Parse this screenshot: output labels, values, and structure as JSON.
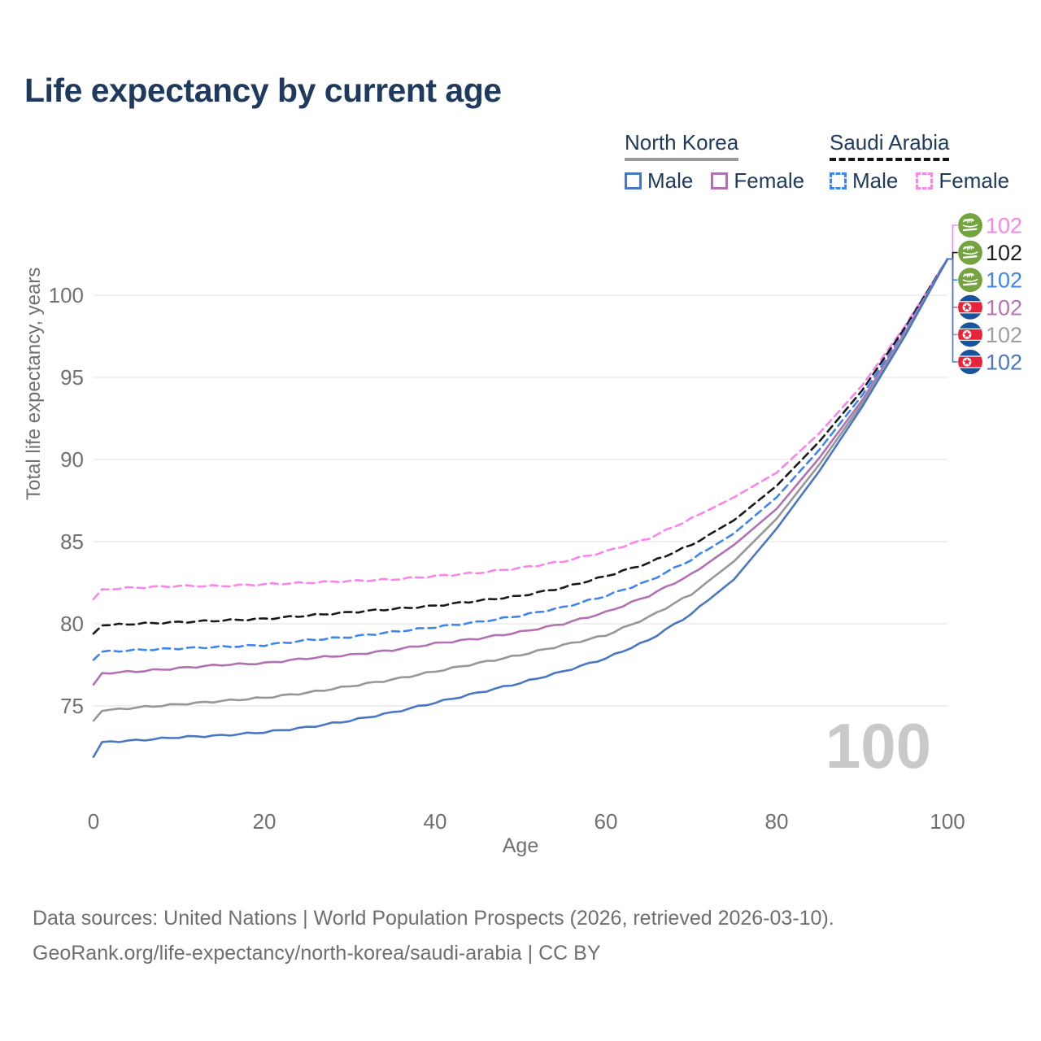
{
  "title": "Life expectancy by current age",
  "legend": {
    "groups": [
      {
        "name": "North Korea",
        "line_style": "solid",
        "underline_color": "#9a9a9a",
        "items": [
          {
            "label": "Male",
            "color": "#4a77c2"
          },
          {
            "label": "Female",
            "color": "#b271b3"
          }
        ]
      },
      {
        "name": "Saudi Arabia",
        "line_style": "dashed",
        "underline_color": "#161616",
        "items": [
          {
            "label": "Male",
            "color": "#3d86f2"
          },
          {
            "label": "Female",
            "color": "#fb84ea"
          }
        ]
      }
    ]
  },
  "chart_data": {
    "type": "line",
    "title": "Life expectancy by current age",
    "xlabel": "Age",
    "ylabel": "Total life expectancy, years",
    "x_ticks": [
      0,
      20,
      40,
      60,
      80,
      100
    ],
    "y_ticks": [
      75,
      80,
      85,
      90,
      95,
      100
    ],
    "xlim": [
      0,
      100
    ],
    "ylim": [
      71,
      103.5
    ],
    "grid": "horizontal-only",
    "legend_position": "top-right",
    "age_counter": "100",
    "x": [
      0,
      1,
      5,
      10,
      15,
      20,
      25,
      30,
      35,
      40,
      45,
      50,
      55,
      60,
      65,
      70,
      75,
      80,
      85,
      90,
      95,
      100
    ],
    "series": [
      {
        "name": "Saudi Arabia Female",
        "country": "Saudi Arabia",
        "sex": "Female",
        "style": "dashed",
        "color": "#fb84ea",
        "flag": "saudi-arabia",
        "end_label": "102",
        "end_label_color": "#fb84ea",
        "values": [
          81.5,
          82.1,
          82.2,
          82.3,
          82.3,
          82.4,
          82.5,
          82.6,
          82.7,
          82.9,
          83.1,
          83.4,
          83.8,
          84.4,
          85.2,
          86.4,
          87.7,
          89.2,
          91.6,
          94.5,
          98.1,
          102.2
        ]
      },
      {
        "name": "Saudi Arabia Both sexes",
        "country": "Saudi Arabia",
        "sex": "Both",
        "style": "dashed",
        "color": "#1a1a1a",
        "flag": "saudi-arabia",
        "end_label": "102",
        "end_label_color": "#1f1f1f",
        "values": [
          79.4,
          79.9,
          80.0,
          80.1,
          80.2,
          80.3,
          80.5,
          80.7,
          80.9,
          81.1,
          81.4,
          81.7,
          82.2,
          82.9,
          83.7,
          84.8,
          86.3,
          88.4,
          91.1,
          94.2,
          98.0,
          102.2
        ]
      },
      {
        "name": "Saudi Arabia Male",
        "country": "Saudi Arabia",
        "sex": "Male",
        "style": "dashed",
        "color": "#3d86f2",
        "flag": "saudi-arabia",
        "end_label": "102",
        "end_label_color": "#3d86f2",
        "values": [
          77.8,
          78.3,
          78.4,
          78.5,
          78.6,
          78.7,
          79.0,
          79.2,
          79.5,
          79.8,
          80.1,
          80.5,
          81.0,
          81.7,
          82.6,
          83.9,
          85.5,
          87.7,
          90.6,
          93.9,
          97.8,
          102.2
        ]
      },
      {
        "name": "North Korea Female",
        "country": "North Korea",
        "sex": "Female",
        "style": "solid",
        "color": "#b271b3",
        "flag": "north-korea",
        "end_label": "102",
        "end_label_color": "#b473b4",
        "values": [
          76.3,
          77.0,
          77.1,
          77.3,
          77.5,
          77.6,
          77.9,
          78.1,
          78.4,
          78.8,
          79.1,
          79.5,
          80.0,
          80.7,
          81.7,
          83.0,
          84.8,
          87.0,
          90.1,
          93.6,
          97.7,
          102.2
        ]
      },
      {
        "name": "North Korea Both sexes",
        "country": "North Korea",
        "sex": "Both",
        "style": "solid",
        "color": "#979797",
        "flag": "north-korea",
        "end_label": "102",
        "end_label_color": "#9e9e9e",
        "values": [
          74.1,
          74.7,
          74.9,
          75.1,
          75.3,
          75.5,
          75.8,
          76.2,
          76.6,
          77.1,
          77.6,
          78.1,
          78.7,
          79.3,
          80.4,
          81.8,
          83.8,
          86.4,
          89.7,
          93.4,
          97.6,
          102.2
        ]
      },
      {
        "name": "North Korea Male",
        "country": "North Korea",
        "sex": "Male",
        "style": "solid",
        "color": "#4a77c2",
        "flag": "north-korea",
        "end_label": "102",
        "end_label_color": "#4a77c2",
        "values": [
          71.9,
          72.8,
          72.9,
          73.1,
          73.2,
          73.4,
          73.7,
          74.1,
          74.6,
          75.2,
          75.8,
          76.4,
          77.1,
          77.9,
          79.0,
          80.6,
          82.7,
          85.8,
          89.3,
          93.2,
          97.5,
          102.2
        ]
      }
    ]
  },
  "colors": {
    "title_text": "#1e3a5f",
    "axis_text": "#707070",
    "gridline": "#ececec",
    "watermark": "#c9c9c9",
    "saudi_flag_green": "#74a43f",
    "nk_flag_red": "#e8243a",
    "nk_flag_blue": "#15549f"
  },
  "footer": {
    "line1": "Data sources: United Nations | World Population Prospects (2026, retrieved 2026-03-10).",
    "line2": "GeoRank.org/life-expectancy/north-korea/saudi-arabia | CC BY"
  }
}
